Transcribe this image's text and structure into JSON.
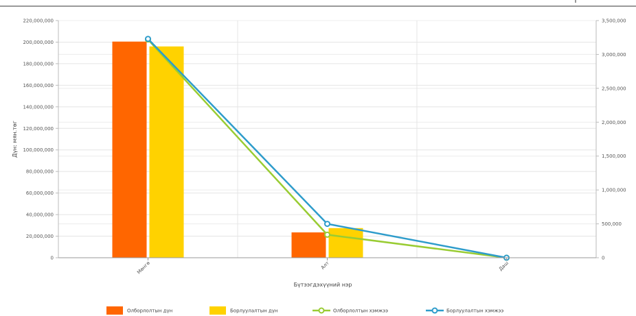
{
  "chart_data": {
    "type": "bar",
    "categories": [
      "Мөнгө",
      "Алт",
      "Даш"
    ],
    "series": [
      {
        "name": "Олборлолтын дүн",
        "type": "bar",
        "axis": "left",
        "color": "#ff6600",
        "values": [
          200500000,
          23500000,
          0
        ]
      },
      {
        "name": "Борлуулалтын дүн",
        "type": "bar",
        "axis": "left",
        "color": "#ffd200",
        "values": [
          196000000,
          27500000,
          0
        ]
      },
      {
        "name": "Олборлолтын хэмжээ",
        "type": "line",
        "axis": "right",
        "color": "#99cc33",
        "values": [
          3220000,
          340000,
          0
        ]
      },
      {
        "name": "Борлуулалтын хэмжээ",
        "type": "line",
        "axis": "right",
        "color": "#2e9ccb",
        "values": [
          3230000,
          500000,
          0
        ]
      }
    ],
    "xlabel": "Бүтээгдэхүүний нэр",
    "ylabel": "Дүн: мян.төг",
    "ylim": [
      0,
      220000000
    ],
    "y_ticks": [
      "0",
      "20,000,000",
      "40,000,000",
      "60,000,000",
      "80,000,000",
      "100,000,000",
      "120,000,000",
      "140,000,000",
      "160,000,000",
      "180,000,000",
      "200,000,000",
      "220,000,000"
    ],
    "y2lim": [
      0,
      3500000
    ],
    "y2_ticks": [
      "0",
      "500,000",
      "1,000,000",
      "1,500,000",
      "2,000,000",
      "2,500,000",
      "3,000,000",
      "3,500,000"
    ],
    "grid": true,
    "legend": "bottom"
  }
}
